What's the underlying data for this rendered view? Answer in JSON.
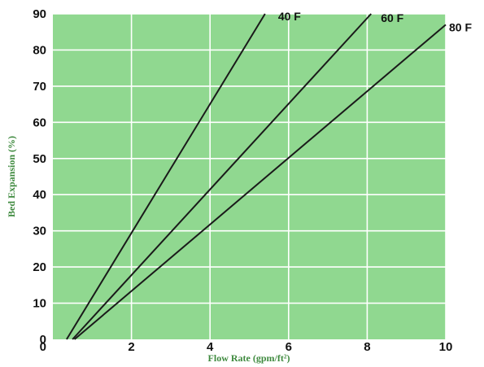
{
  "chart_data": {
    "type": "line",
    "xlabel": "Flow Rate (gpm/ft²)",
    "ylabel": "Bed Expansion (%)",
    "xlim": [
      0,
      10
    ],
    "ylim": [
      0,
      90
    ],
    "xticks": [
      0,
      2,
      4,
      6,
      8,
      10
    ],
    "yticks": [
      0,
      10,
      20,
      30,
      40,
      50,
      60,
      70,
      80,
      90
    ],
    "grid": true,
    "series": [
      {
        "name": "40 F",
        "x": [
          0.35,
          5.4
        ],
        "y": [
          0,
          90
        ]
      },
      {
        "name": "60 F",
        "x": [
          0.5,
          8.1
        ],
        "y": [
          0,
          90
        ]
      },
      {
        "name": "80 F",
        "x": [
          0.55,
          10
        ],
        "y": [
          0,
          87
        ]
      }
    ]
  },
  "colors": {
    "plot_background": "#90d890",
    "gridline": "#ffffff",
    "line": "#1a1a1a",
    "axis_label": "#3f8a3f"
  }
}
